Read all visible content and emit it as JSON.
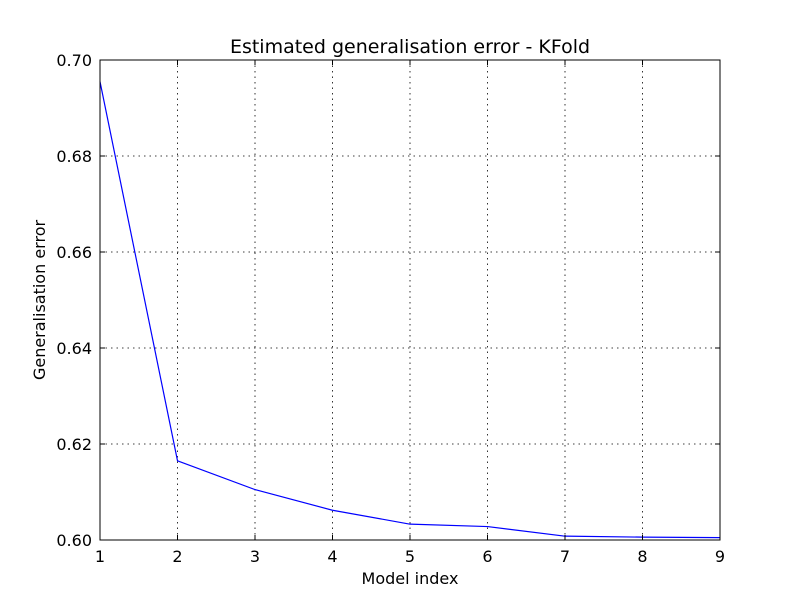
{
  "colors": {
    "series_line": "#0000ff",
    "axes": "#000000",
    "background": "#ffffff"
  },
  "chart_data": {
    "type": "line",
    "title": "Estimated generalisation error - KFold",
    "xlabel": "Model index",
    "ylabel": "Generalisation error",
    "xlim": [
      1,
      9
    ],
    "ylim": [
      0.6,
      0.7
    ],
    "xticks": [
      1,
      2,
      3,
      4,
      5,
      6,
      7,
      8,
      9
    ],
    "xtick_labels": [
      "1",
      "2",
      "3",
      "4",
      "5",
      "6",
      "7",
      "8",
      "9"
    ],
    "yticks": [
      0.6,
      0.62,
      0.64,
      0.66,
      0.68,
      0.7
    ],
    "ytick_labels": [
      "0.60",
      "0.62",
      "0.64",
      "0.66",
      "0.68",
      "0.70"
    ],
    "grid": true,
    "legend": "none",
    "series": [
      {
        "x": [
          1,
          2,
          3,
          4,
          5,
          6,
          7,
          8,
          9
        ],
        "values": [
          0.6955,
          0.6165,
          0.6105,
          0.6062,
          0.6033,
          0.6028,
          0.6008,
          0.6006,
          0.6005
        ]
      }
    ]
  }
}
